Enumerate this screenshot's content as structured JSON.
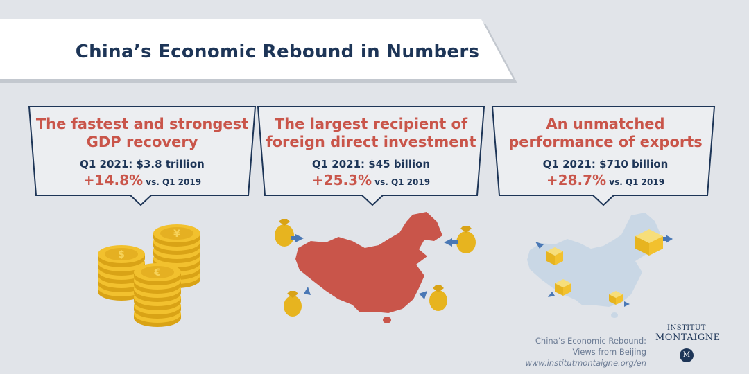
{
  "title": "China’s Economic Rebound in Numbers",
  "cards": [
    {
      "head_line1": "The fastest and strongest",
      "head_line2": "GDP recovery",
      "sub": "Q1 2021: $3.8 trillion",
      "pct": "+14.8%",
      "vs": " vs. Q1 2019",
      "illustration": "coin-stacks-icon"
    },
    {
      "head_line1": "The largest recipient of",
      "head_line2": "foreign direct investment",
      "sub": "Q1 2021: $45 billion",
      "pct": "+25.3%",
      "vs": " vs. Q1 2019",
      "illustration": "china-map-money-bags-icon"
    },
    {
      "head_line1": "An unmatched",
      "head_line2": "performance of exports",
      "sub": "Q1 2021: $710 billion",
      "pct": "+28.7%",
      "vs": " vs. Q1 2019",
      "illustration": "china-map-export-boxes-icon"
    }
  ],
  "footer": {
    "line1": "China’s Economic Rebound:",
    "line2": "Views from Beijing",
    "url": "www.institutmontaigne.org/en"
  },
  "logo": {
    "line1": "INSTITUT",
    "line2": "MONTAIGNE",
    "badge": "M"
  },
  "colors": {
    "background": "#e1e4e9",
    "navy": "#1d3557",
    "red": "#c9554a",
    "gold": "#f2c12e",
    "map_light": "#c9d7e5",
    "arrow": "#4a78b5"
  }
}
